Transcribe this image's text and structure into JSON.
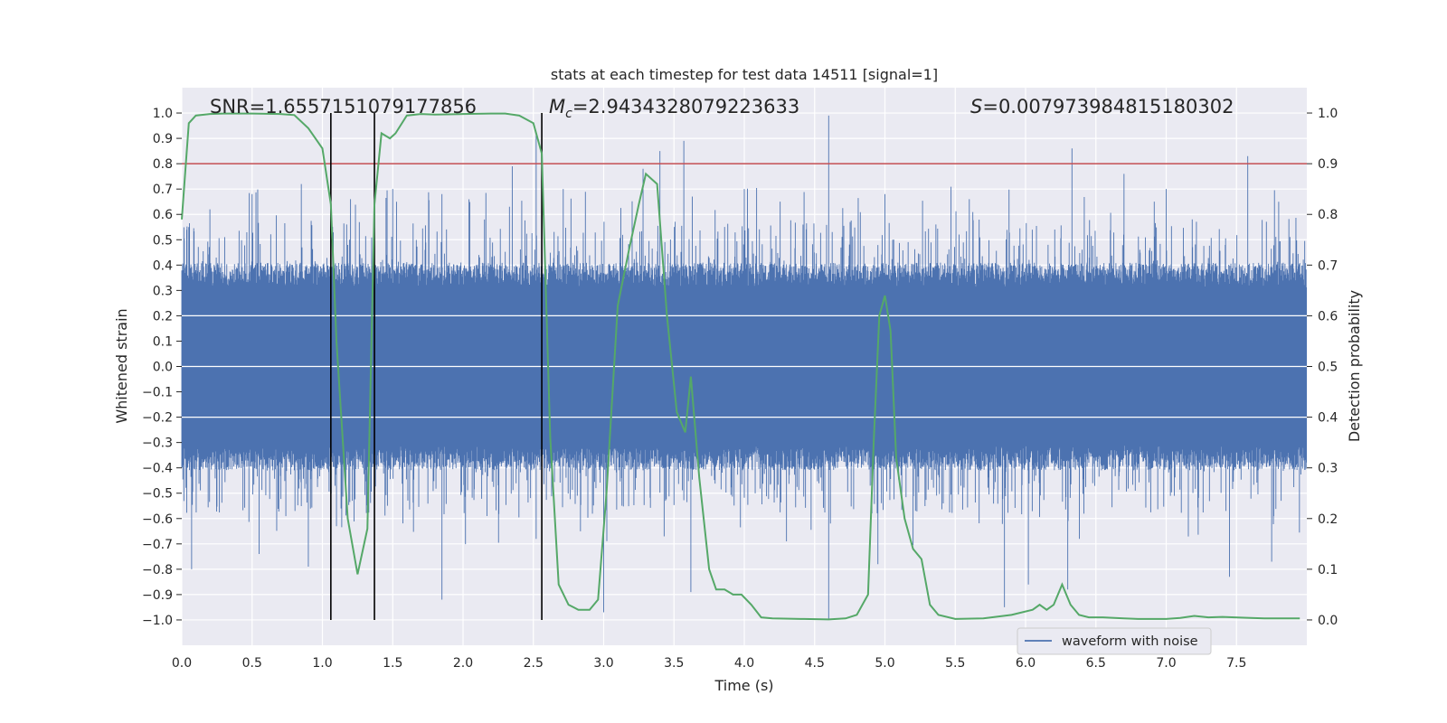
{
  "chart_data": {
    "type": "line",
    "title": "stats at each timestep for test data 14511 [signal=1]",
    "xlabel": "Time (s)",
    "ylabel": "Whitened strain",
    "y2label": "Detection probability",
    "xlim": [
      0.0,
      8.0
    ],
    "ylim": [
      -1.1,
      1.1
    ],
    "y2lim": [
      -0.05,
      1.05
    ],
    "xticks": [
      "0.0",
      "0.5",
      "1.0",
      "1.5",
      "2.0",
      "2.5",
      "3.0",
      "3.5",
      "4.0",
      "4.5",
      "5.0",
      "5.5",
      "6.0",
      "6.5",
      "7.0",
      "7.5"
    ],
    "yticks": [
      "1.0",
      "0.9",
      "0.8",
      "0.7",
      "0.6",
      "0.5",
      "0.4",
      "0.3",
      "0.2",
      "0.1",
      "0.0",
      "−0.1",
      "−0.2",
      "−0.3",
      "−0.4",
      "−0.5",
      "−0.6",
      "−0.7",
      "−0.8",
      "−0.9",
      "−1.0"
    ],
    "y2ticks": [
      "1.0",
      "0.9",
      "0.8",
      "0.7",
      "0.6",
      "0.5",
      "0.4",
      "0.3",
      "0.2",
      "0.1",
      "0.0"
    ],
    "grid": true,
    "legend_position": "lower-right",
    "annotations": {
      "snr": "SNR=1.6557151079177856",
      "mc_symbol": "M",
      "mc_sub": "c",
      "mc_value": "=2.9434328079223633",
      "s_symbol": "S",
      "s_value": "=0.007973984815180302"
    },
    "threshold": 0.8,
    "vertical_lines": [
      1.06,
      1.37,
      2.56
    ],
    "waveform": {
      "name": "waveform with noise",
      "color": "#4c72b0",
      "envelope_base": 0.39,
      "peaks_up": [
        [
          0.05,
          0.55
        ],
        [
          0.2,
          0.62
        ],
        [
          0.5,
          0.68
        ],
        [
          0.85,
          0.72
        ],
        [
          1.2,
          0.66
        ],
        [
          1.5,
          0.7
        ],
        [
          1.85,
          0.68
        ],
        [
          2.35,
          0.79
        ],
        [
          2.52,
          0.92
        ],
        [
          3.28,
          0.78
        ],
        [
          3.4,
          0.85
        ],
        [
          3.57,
          0.89
        ],
        [
          4.0,
          0.7
        ],
        [
          4.6,
          0.99
        ],
        [
          5.0,
          0.68
        ],
        [
          5.6,
          0.66
        ],
        [
          6.33,
          0.86
        ],
        [
          6.7,
          0.76
        ],
        [
          7.0,
          0.7
        ],
        [
          7.58,
          0.83
        ],
        [
          7.8,
          0.65
        ]
      ],
      "peaks_down": [
        [
          0.07,
          -0.8
        ],
        [
          0.55,
          -0.74
        ],
        [
          0.9,
          -0.79
        ],
        [
          1.1,
          -0.63
        ],
        [
          1.85,
          -0.92
        ],
        [
          2.52,
          -0.68
        ],
        [
          3.0,
          -0.97
        ],
        [
          3.62,
          -0.89
        ],
        [
          4.3,
          -0.69
        ],
        [
          4.6,
          -1.0
        ],
        [
          4.95,
          -0.78
        ],
        [
          5.85,
          -0.95
        ],
        [
          6.02,
          -0.86
        ],
        [
          6.3,
          -0.88
        ],
        [
          7.45,
          -0.83
        ],
        [
          7.75,
          -0.77
        ]
      ]
    },
    "probability": {
      "color": "#55a868",
      "x": [
        0.0,
        0.05,
        0.1,
        0.2,
        0.3,
        0.5,
        0.7,
        0.8,
        0.9,
        0.95,
        1.0,
        1.06,
        1.1,
        1.18,
        1.25,
        1.32,
        1.37,
        1.42,
        1.48,
        1.52,
        1.6,
        1.7,
        1.8,
        2.0,
        2.2,
        2.3,
        2.4,
        2.5,
        2.56,
        2.62,
        2.68,
        2.75,
        2.82,
        2.9,
        2.96,
        3.02,
        3.1,
        3.18,
        3.25,
        3.3,
        3.38,
        3.45,
        3.52,
        3.58,
        3.62,
        3.68,
        3.75,
        3.8,
        3.86,
        3.92,
        3.98,
        4.05,
        4.12,
        4.2,
        4.4,
        4.6,
        4.72,
        4.8,
        4.88,
        4.92,
        4.96,
        5.0,
        5.04,
        5.08,
        5.14,
        5.2,
        5.26,
        5.32,
        5.38,
        5.5,
        5.7,
        5.9,
        6.05,
        6.1,
        6.15,
        6.2,
        6.26,
        6.32,
        6.38,
        6.45,
        6.55,
        6.7,
        6.8,
        7.0,
        7.1,
        7.2,
        7.3,
        7.4,
        7.6,
        7.7,
        7.8,
        7.95
      ],
      "y": [
        0.79,
        0.98,
        0.995,
        0.998,
        0.999,
        0.999,
        0.998,
        0.996,
        0.97,
        0.95,
        0.93,
        0.82,
        0.55,
        0.2,
        0.09,
        0.18,
        0.82,
        0.96,
        0.95,
        0.96,
        0.995,
        0.998,
        0.997,
        0.998,
        0.999,
        0.999,
        0.995,
        0.98,
        0.92,
        0.36,
        0.07,
        0.03,
        0.02,
        0.02,
        0.04,
        0.25,
        0.62,
        0.73,
        0.82,
        0.88,
        0.86,
        0.6,
        0.41,
        0.37,
        0.48,
        0.28,
        0.1,
        0.06,
        0.06,
        0.05,
        0.05,
        0.03,
        0.005,
        0.003,
        0.002,
        0.001,
        0.003,
        0.01,
        0.05,
        0.35,
        0.6,
        0.64,
        0.57,
        0.32,
        0.2,
        0.14,
        0.12,
        0.03,
        0.01,
        0.002,
        0.003,
        0.01,
        0.02,
        0.03,
        0.02,
        0.03,
        0.07,
        0.03,
        0.01,
        0.005,
        0.005,
        0.003,
        0.002,
        0.002,
        0.004,
        0.008,
        0.005,
        0.006,
        0.004,
        0.003,
        0.003,
        0.003
      ]
    }
  }
}
